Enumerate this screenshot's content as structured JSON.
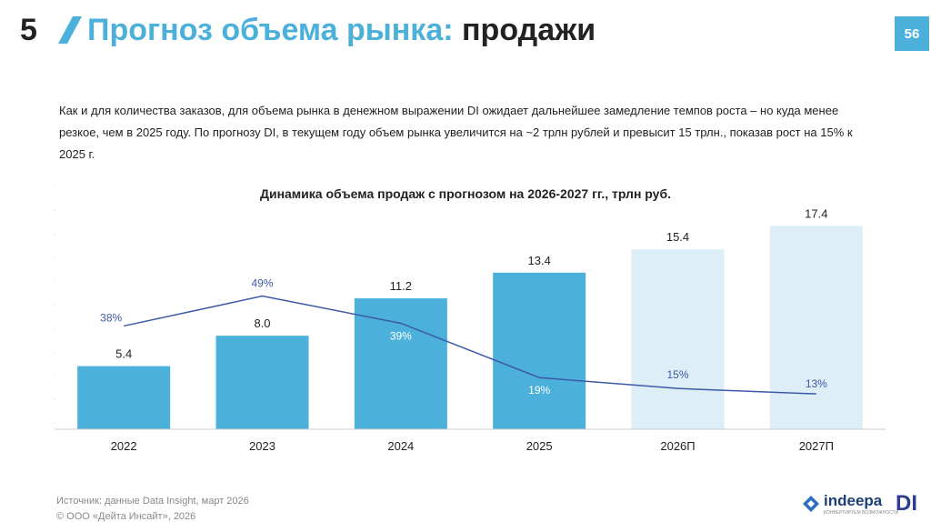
{
  "header": {
    "number": "5",
    "title_accent": "Прогноз объема рынка:",
    "title_rest": "продажи",
    "page": "56"
  },
  "intro": "Как и для количества заказов, для объема рынка в денежном выражении DI ожидает дальнейшее замедление темпов роста – но куда менее резкое, чем в 2025 году. По прогнозу DI, в текущем году объем рынка увеличится на ~2 трлн рублей и превысит 15 трлн., показав рост на 15% к 2025 г.",
  "chart_data": {
    "type": "bar",
    "title": "Динамика объема продаж с прогнозом на 2026-2027 гг., трлн руб.",
    "categories": [
      "2022",
      "2023",
      "2024",
      "2025",
      "2026П",
      "2027П"
    ],
    "values": [
      5.4,
      8.0,
      11.2,
      13.4,
      15.4,
      17.4
    ],
    "value_labels": [
      "5.4",
      "8.0",
      "11.2",
      "13.4",
      "15.4",
      "17.4"
    ],
    "colors": [
      "#4bb0da",
      "#4bb0da",
      "#4bb0da",
      "#4bb0da",
      "#ddeef7",
      "#ddeef7"
    ],
    "ylim": [
      0,
      20
    ],
    "line": {
      "type": "line",
      "axis": "y2",
      "color": "#3d5aa8",
      "values": [
        38,
        49,
        39,
        19,
        15,
        13
      ],
      "value_labels": [
        "38%",
        "49%",
        "39%",
        "19%",
        "15%",
        "13%"
      ]
    },
    "y2lim": [
      0,
      86
    ]
  },
  "footer": {
    "source": "Источник: данные Data Insight, март 2026",
    "copyright": "© ООО «Дейта Инсайт», 2026",
    "logo": "indeepa",
    "logo_sub": "конвертируем возможности",
    "logo2": "DI"
  }
}
